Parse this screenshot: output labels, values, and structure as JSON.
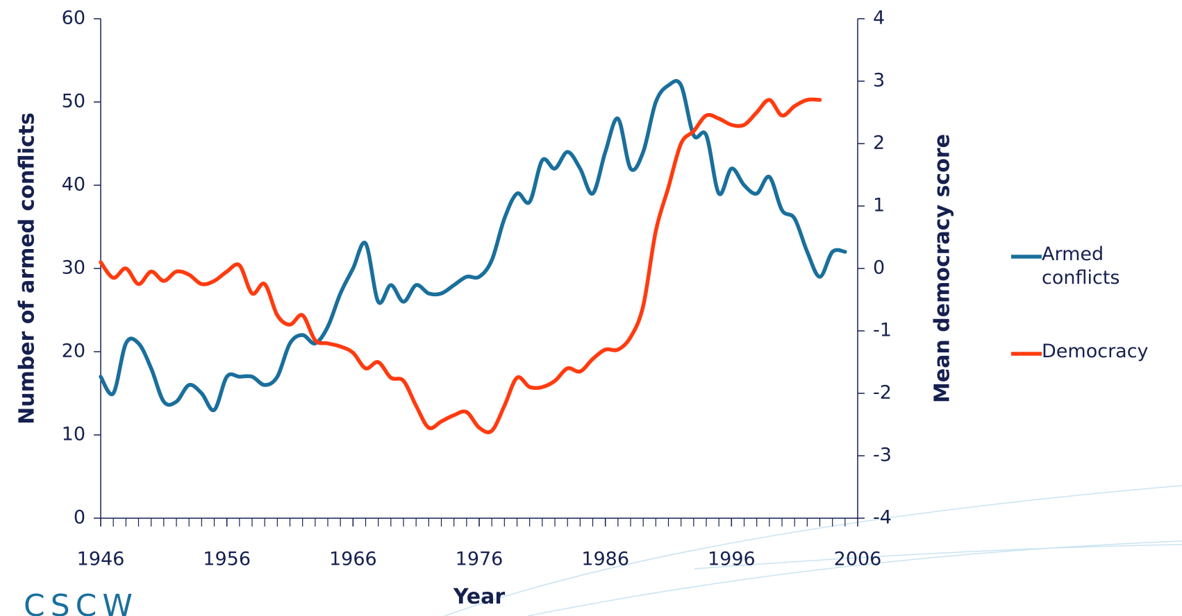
{
  "chart_data": {
    "type": "line",
    "x_label": "Year",
    "y_label": "Number of armed conflicts",
    "y2_label": "Mean democracy score",
    "logo": "CSCW",
    "xlim": [
      1946,
      2006
    ],
    "xticks": [
      1946,
      1956,
      1966,
      1976,
      1986,
      1996,
      2006
    ],
    "ylim": [
      0,
      60
    ],
    "yticks": [
      0,
      10,
      20,
      30,
      40,
      50,
      60
    ],
    "y2lim": [
      -4,
      4
    ],
    "y2ticks": [
      -4,
      -3,
      -2,
      -1,
      0,
      1,
      2,
      3,
      4
    ],
    "legend": "right",
    "x": [
      1946,
      1947,
      1948,
      1949,
      1950,
      1951,
      1952,
      1953,
      1954,
      1955,
      1956,
      1957,
      1958,
      1959,
      1960,
      1961,
      1962,
      1963,
      1964,
      1965,
      1966,
      1967,
      1968,
      1969,
      1970,
      1971,
      1972,
      1973,
      1974,
      1975,
      1976,
      1977,
      1978,
      1979,
      1980,
      1981,
      1982,
      1983,
      1984,
      1985,
      1986,
      1987,
      1988,
      1989,
      1990,
      1991,
      1992,
      1993,
      1994,
      1995,
      1996,
      1997,
      1998,
      1999,
      2000,
      2001,
      2002,
      2003,
      2004,
      2005
    ],
    "series": [
      {
        "name": "Armed conflicts",
        "color": "#1a6f9c",
        "values": [
          17,
          15,
          21,
          21,
          18,
          14,
          14,
          16,
          15,
          13,
          17,
          17,
          17,
          16,
          17,
          21,
          22,
          21,
          23,
          27,
          30,
          33,
          26,
          28,
          26,
          28,
          27,
          27,
          28,
          29,
          29,
          31,
          36,
          39,
          38,
          43,
          42,
          44,
          42,
          39,
          44,
          48,
          42,
          44,
          50,
          52,
          52,
          46,
          46,
          39,
          42,
          40,
          39,
          41,
          37,
          36,
          32,
          29,
          32,
          32
        ]
      },
      {
        "name": "Democracy",
        "color": "#ff3b10",
        "axis": "y2",
        "values": [
          0.1,
          -0.15,
          0,
          -0.25,
          -0.05,
          -0.2,
          -0.05,
          -0.1,
          -0.25,
          -0.2,
          -0.05,
          0.05,
          -0.4,
          -0.25,
          -0.75,
          -0.9,
          -0.75,
          -1.15,
          -1.2,
          -1.25,
          -1.35,
          -1.6,
          -1.5,
          -1.75,
          -1.8,
          -2.2,
          -2.55,
          -2.45,
          -2.35,
          -2.3,
          -2.55,
          -2.6,
          -2.2,
          -1.75,
          -1.9,
          -1.9,
          -1.8,
          -1.6,
          -1.65,
          -1.45,
          -1.3,
          -1.3,
          -1.1,
          -0.6,
          0.6,
          1.3,
          2.0,
          2.2,
          2.45,
          2.4,
          2.3,
          2.3,
          2.5,
          2.7,
          2.45,
          2.6,
          2.7,
          2.7,
          null,
          null
        ]
      }
    ]
  }
}
